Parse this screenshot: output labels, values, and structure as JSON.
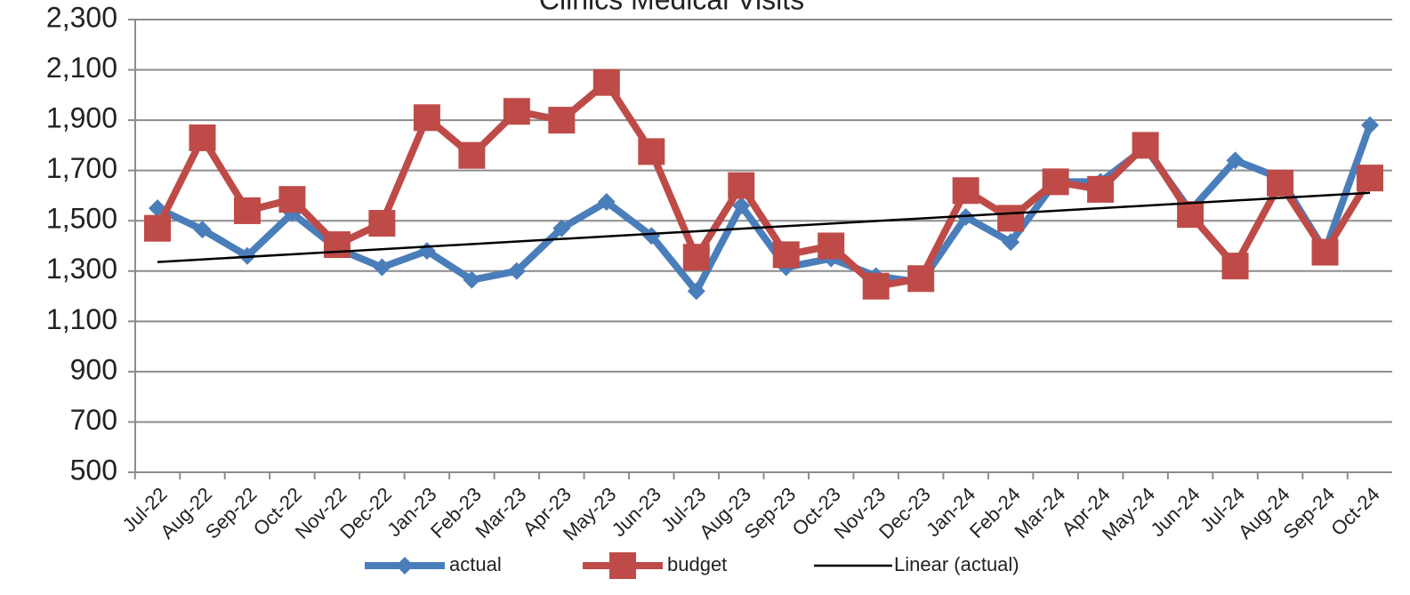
{
  "chart_data": {
    "type": "line",
    "title": "Clinics Medical Visits",
    "categories": [
      "Jul-22",
      "Aug-22",
      "Sep-22",
      "Oct-22",
      "Nov-22",
      "Dec-22",
      "Jan-23",
      "Feb-23",
      "Mar-23",
      "Apr-23",
      "May-23",
      "Jun-23",
      "Jul-23",
      "Aug-23",
      "Sep-23",
      "Oct-23",
      "Nov-23",
      "Dec-23",
      "Jan-24",
      "Feb-24",
      "Mar-24",
      "Apr-24",
      "May-24",
      "Jun-24",
      "Jul-24",
      "Aug-24",
      "Sep-24",
      "Oct-24"
    ],
    "series": [
      {
        "name": "actual",
        "color": "#4a7ebb",
        "marker": "diamond",
        "values": [
          1550,
          1465,
          1360,
          1530,
          1390,
          1315,
          1380,
          1265,
          1300,
          1470,
          1575,
          1440,
          1220,
          1560,
          1315,
          1350,
          1280,
          1255,
          1515,
          1415,
          1655,
          1655,
          1790,
          1540,
          1740,
          1670,
          1380,
          1880
        ]
      },
      {
        "name": "budget",
        "color": "#be4b48",
        "marker": "square",
        "values": [
          1470,
          1830,
          1540,
          1585,
          1405,
          1490,
          1910,
          1760,
          1935,
          1900,
          2050,
          1775,
          1355,
          1640,
          1365,
          1400,
          1240,
          1270,
          1620,
          1510,
          1655,
          1625,
          1800,
          1525,
          1320,
          1650,
          1375,
          1670
        ]
      }
    ],
    "trendline": {
      "name": "Linear (actual)",
      "color": "#000000",
      "of_series": 0
    },
    "ylim": [
      500,
      2300
    ],
    "yticks": [
      {
        "value": 2300,
        "label": "2,300"
      },
      {
        "value": 2100,
        "label": "2,100"
      },
      {
        "value": 1900,
        "label": "1,900"
      },
      {
        "value": 1700,
        "label": "1,700"
      },
      {
        "value": 1500,
        "label": "1,500"
      },
      {
        "value": 1300,
        "label": "1,300"
      },
      {
        "value": 1100,
        "label": "1,100"
      },
      900,
      700,
      500
    ],
    "grid": true,
    "legend": "bottom"
  }
}
